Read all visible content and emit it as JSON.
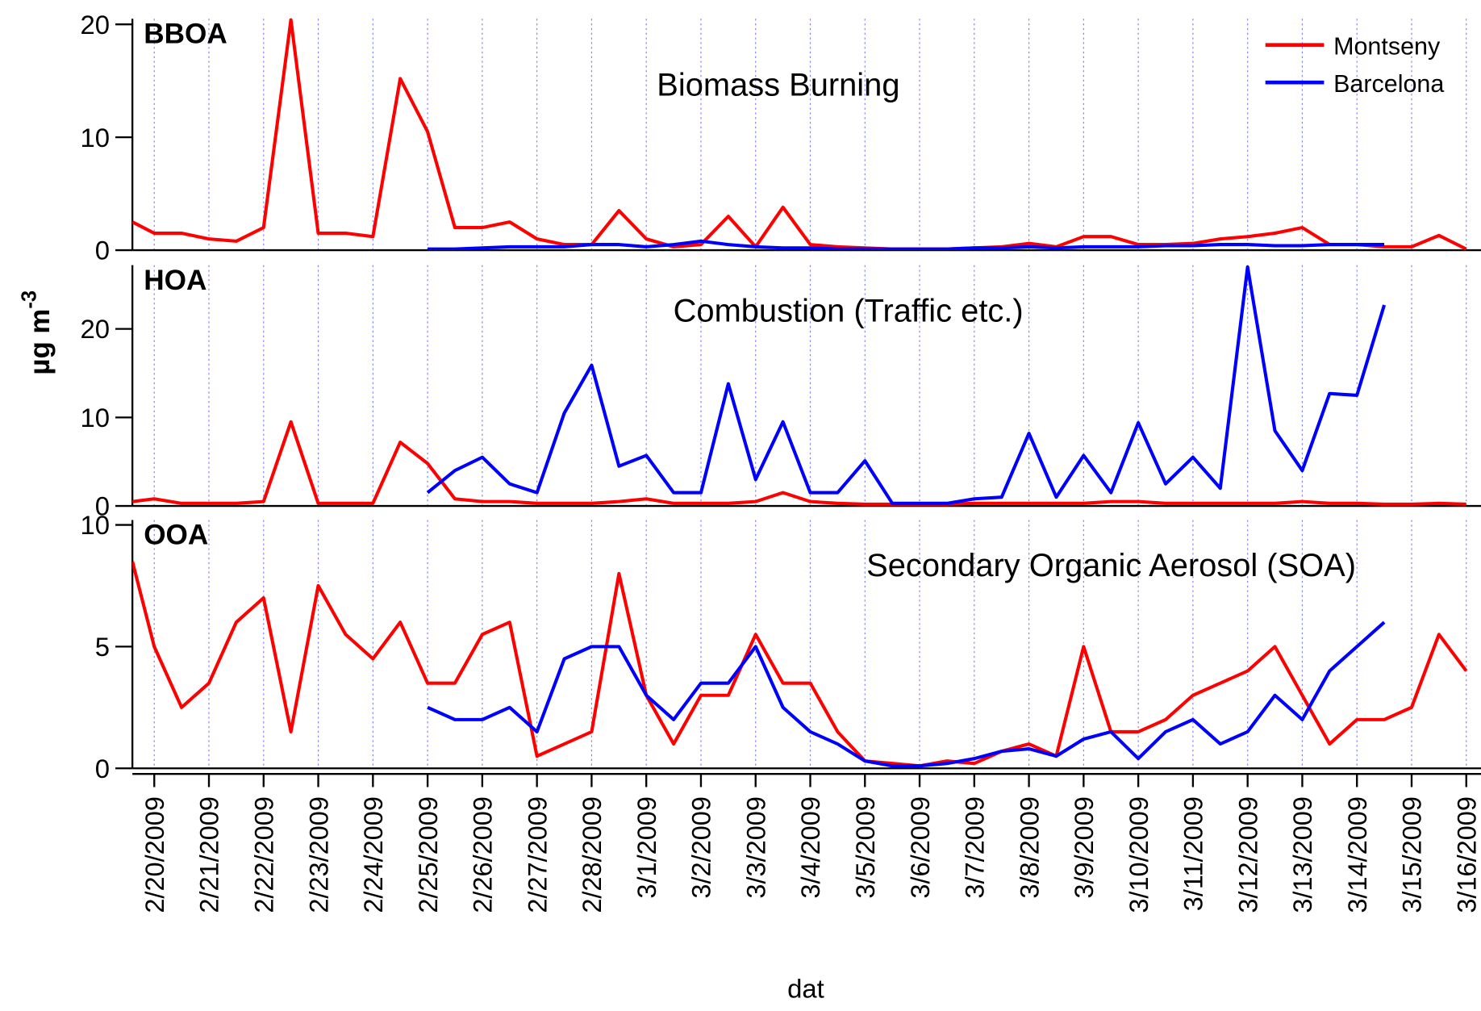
{
  "ylabel": "µg m",
  "ylabel_exponent": "-3",
  "chart_data": [
    {
      "type": "line",
      "panel_label": "BBOA",
      "annotation": "Biomass Burning",
      "legend": "top-right",
      "xlim": [
        -0.4,
        24.2
      ],
      "ylim": [
        0,
        20.5
      ],
      "yticks": [
        0,
        10,
        20
      ],
      "x": [
        -0.4,
        0,
        0.5,
        1,
        1.5,
        2,
        2.5,
        3,
        3.5,
        4,
        4.5,
        5,
        5.5,
        6,
        6.5,
        7,
        7.5,
        8,
        8.5,
        9,
        9.5,
        10,
        10.5,
        11,
        11.5,
        12,
        12.5,
        13,
        13.5,
        14,
        14.5,
        15,
        15.5,
        16,
        16.5,
        17,
        17.5,
        18,
        18.5,
        19,
        19.5,
        20,
        20.5,
        21,
        21.5,
        22,
        22.5,
        23,
        23.5,
        24
      ],
      "series": [
        {
          "name": "Montseny",
          "color": "#ff0000",
          "values": [
            2.5,
            1.5,
            1.5,
            1.0,
            0.8,
            2.0,
            20.4,
            1.5,
            1.5,
            1.2,
            15.2,
            10.5,
            2.0,
            2.0,
            2.5,
            1.0,
            0.5,
            0.5,
            3.5,
            1.0,
            0.3,
            0.5,
            3.0,
            0.3,
            3.8,
            0.5,
            0.3,
            0.2,
            0.1,
            0.1,
            0.1,
            0.2,
            0.3,
            0.6,
            0.3,
            1.2,
            1.2,
            0.5,
            0.5,
            0.6,
            1.0,
            1.2,
            1.5,
            2.0,
            0.5,
            0.5,
            0.3,
            0.3,
            1.3,
            0.1
          ]
        },
        {
          "name": "Barcelona",
          "color": "#0000ff",
          "values": [
            null,
            null,
            null,
            null,
            null,
            null,
            null,
            null,
            null,
            null,
            null,
            0.1,
            0.1,
            0.2,
            0.3,
            0.3,
            0.3,
            0.5,
            0.5,
            0.3,
            0.5,
            0.8,
            0.5,
            0.3,
            0.2,
            0.2,
            0.1,
            0.1,
            0.1,
            0.1,
            0.1,
            0.2,
            0.2,
            0.3,
            0.2,
            0.3,
            0.3,
            0.3,
            0.4,
            0.4,
            0.5,
            0.5,
            0.4,
            0.4,
            0.5,
            0.5,
            0.5,
            null,
            null,
            null
          ]
        }
      ]
    },
    {
      "type": "line",
      "panel_label": "HOA",
      "annotation": "Combustion (Traffic etc.)",
      "xlim": [
        -0.4,
        24.2
      ],
      "ylim": [
        0,
        27.2
      ],
      "yticks": [
        0,
        10,
        20
      ],
      "x": [
        -0.4,
        0,
        0.5,
        1,
        1.5,
        2,
        2.5,
        3,
        3.5,
        4,
        4.5,
        5,
        5.5,
        6,
        6.5,
        7,
        7.5,
        8,
        8.5,
        9,
        9.5,
        10,
        10.5,
        11,
        11.5,
        12,
        12.5,
        13,
        13.5,
        14,
        14.5,
        15,
        15.5,
        16,
        16.5,
        17,
        17.5,
        18,
        18.5,
        19,
        19.5,
        20,
        20.5,
        21,
        21.5,
        22,
        22.5,
        23,
        23.5,
        24
      ],
      "series": [
        {
          "name": "Montseny",
          "color": "#ff0000",
          "values": [
            0.5,
            0.8,
            0.3,
            0.3,
            0.3,
            0.5,
            9.5,
            0.3,
            0.3,
            0.3,
            7.2,
            4.8,
            0.8,
            0.5,
            0.5,
            0.3,
            0.3,
            0.3,
            0.5,
            0.8,
            0.3,
            0.3,
            0.3,
            0.5,
            1.5,
            0.5,
            0.3,
            0.2,
            0.2,
            0.2,
            0.2,
            0.3,
            0.3,
            0.3,
            0.3,
            0.3,
            0.5,
            0.5,
            0.3,
            0.3,
            0.3,
            0.3,
            0.3,
            0.5,
            0.3,
            0.3,
            0.2,
            0.2,
            0.3,
            0.2
          ]
        },
        {
          "name": "Barcelona",
          "color": "#0000ff",
          "values": [
            null,
            null,
            null,
            null,
            null,
            null,
            null,
            null,
            null,
            null,
            null,
            1.5,
            4,
            5.5,
            2.5,
            1.5,
            10.5,
            15.9,
            4.5,
            5.7,
            1.5,
            1.5,
            13.8,
            3,
            9.5,
            1.5,
            1.5,
            5.1,
            0.3,
            0.3,
            0.3,
            0.8,
            1.0,
            8.2,
            1.0,
            5.7,
            1.5,
            9.4,
            2.5,
            5.5,
            2,
            27,
            8.5,
            4,
            12.7,
            12.5,
            22.7,
            null,
            null,
            null
          ]
        }
      ]
    },
    {
      "type": "line",
      "panel_label": "OOA",
      "annotation": "Secondary Organic Aerosol (SOA)",
      "xlabel": "dat",
      "xlim": [
        -0.4,
        24.2
      ],
      "ylim": [
        0,
        10.2
      ],
      "yticks": [
        0,
        5,
        10
      ],
      "xticks": [
        {
          "value": 0,
          "label": "2/20/2009"
        },
        {
          "value": 1,
          "label": "2/21/2009"
        },
        {
          "value": 2,
          "label": "2/22/2009"
        },
        {
          "value": 3,
          "label": "2/23/2009"
        },
        {
          "value": 4,
          "label": "2/24/2009"
        },
        {
          "value": 5,
          "label": "2/25/2009"
        },
        {
          "value": 6,
          "label": "2/26/2009"
        },
        {
          "value": 7,
          "label": "2/27/2009"
        },
        {
          "value": 8,
          "label": "2/28/2009"
        },
        {
          "value": 9,
          "label": "3/1/2009"
        },
        {
          "value": 10,
          "label": "3/2/2009"
        },
        {
          "value": 11,
          "label": "3/3/2009"
        },
        {
          "value": 12,
          "label": "3/4/2009"
        },
        {
          "value": 13,
          "label": "3/5/2009"
        },
        {
          "value": 14,
          "label": "3/6/2009"
        },
        {
          "value": 15,
          "label": "3/7/2009"
        },
        {
          "value": 16,
          "label": "3/8/2009"
        },
        {
          "value": 17,
          "label": "3/9/2009"
        },
        {
          "value": 18,
          "label": "3/10/2009"
        },
        {
          "value": 19,
          "label": "3/11/2009"
        },
        {
          "value": 20,
          "label": "3/12/2009"
        },
        {
          "value": 21,
          "label": "3/13/2009"
        },
        {
          "value": 22,
          "label": "3/14/2009"
        },
        {
          "value": 23,
          "label": "3/15/2009"
        },
        {
          "value": 24,
          "label": "3/16/2009"
        }
      ],
      "x": [
        -0.4,
        0,
        0.5,
        1,
        1.5,
        2,
        2.5,
        3,
        3.5,
        4,
        4.5,
        5,
        5.5,
        6,
        6.5,
        7,
        7.5,
        8,
        8.5,
        9,
        9.5,
        10,
        10.5,
        11,
        11.5,
        12,
        12.5,
        13,
        13.5,
        14,
        14.5,
        15,
        15.5,
        16,
        16.5,
        17,
        17.5,
        18,
        18.5,
        19,
        19.5,
        20,
        20.5,
        21,
        21.5,
        22,
        22.5,
        23,
        23.5,
        24
      ],
      "series": [
        {
          "name": "Montseny",
          "color": "#ff0000",
          "values": [
            8.5,
            5.0,
            2.5,
            3.5,
            6.0,
            7.0,
            1.5,
            7.5,
            5.5,
            4.5,
            6.0,
            3.5,
            3.5,
            5.5,
            6.0,
            0.5,
            1.0,
            1.5,
            8.0,
            3.0,
            1.0,
            3.0,
            3.0,
            5.5,
            3.5,
            3.5,
            1.5,
            0.3,
            0.2,
            0.1,
            0.3,
            0.2,
            0.7,
            1.0,
            0.5,
            5.0,
            1.5,
            1.5,
            2.0,
            3.0,
            3.5,
            4.0,
            5.0,
            3.0,
            1.0,
            2.0,
            2.0,
            2.5,
            5.5,
            4.0
          ]
        },
        {
          "name": "Barcelona",
          "color": "#0000ff",
          "values": [
            null,
            null,
            null,
            null,
            null,
            null,
            null,
            null,
            null,
            null,
            null,
            2.5,
            2.0,
            2.0,
            2.5,
            1.5,
            4.5,
            5.0,
            5.0,
            3.0,
            2.0,
            3.5,
            3.5,
            5.0,
            2.5,
            1.5,
            1.0,
            0.3,
            0.1,
            0.1,
            0.2,
            0.4,
            0.7,
            0.8,
            0.5,
            1.2,
            1.5,
            0.4,
            1.5,
            2.0,
            1.0,
            1.5,
            3.0,
            2.0,
            4.0,
            5.0,
            6.0,
            null,
            null,
            null
          ]
        }
      ]
    }
  ]
}
